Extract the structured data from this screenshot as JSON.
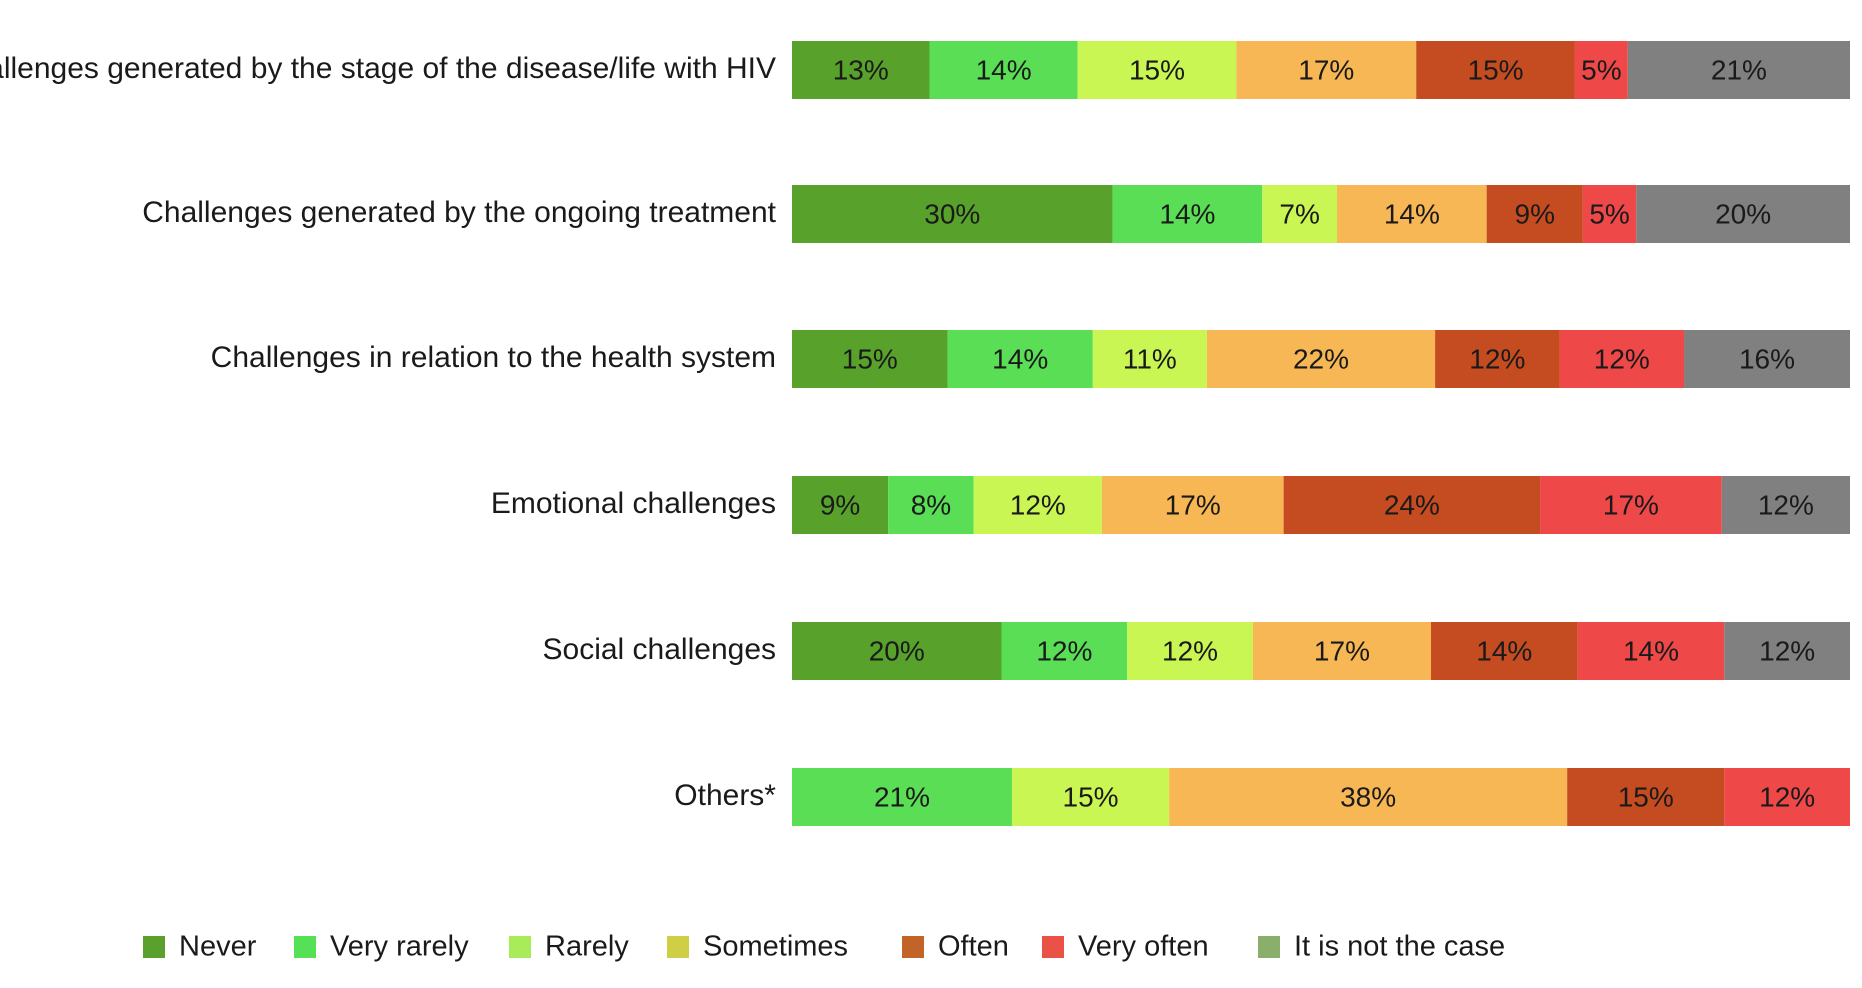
{
  "chart_data": {
    "type": "bar",
    "orientation": "horizontal",
    "stacked": true,
    "title": "",
    "xlabel": "",
    "ylabel": "",
    "xlim": [
      0,
      100
    ],
    "unit": "%",
    "categories": [
      "Challenges generated by the stage of the disease/life with HIV",
      "Challenges generated by the ongoing treatment",
      "Challenges in relation to the health system",
      "Emotional challenges",
      "Social challenges",
      "Others*"
    ],
    "segments": [
      [
        {
          "series": "Never",
          "value": 13,
          "color": "#58A22C",
          "label": "13%"
        },
        {
          "series": "Very rarely",
          "value": 14,
          "color": "#59DE55",
          "label": "14%"
        },
        {
          "series": "Rarely",
          "value": 15,
          "color": "#C9F653",
          "label": "15%"
        },
        {
          "series": "Sometimes",
          "value": 17,
          "color": "#F8B755",
          "label": "17%"
        },
        {
          "series": "Often",
          "value": 15,
          "color": "#C44C20",
          "label": "15%"
        },
        {
          "series": "Very often",
          "value": 5,
          "color": "#EE4848",
          "label": "5%"
        },
        {
          "series": "It is not the case",
          "value": 21,
          "color": "#808080",
          "label": "21%"
        }
      ],
      [
        {
          "series": "Never",
          "value": 30,
          "color": "#58A22C",
          "label": "30%"
        },
        {
          "series": "Very rarely",
          "value": 14,
          "color": "#59DE55",
          "label": "14%"
        },
        {
          "series": "Rarely",
          "value": 7,
          "color": "#C9F653",
          "label": "7%"
        },
        {
          "series": "Sometimes",
          "value": 14,
          "color": "#F8B755",
          "label": "14%"
        },
        {
          "series": "Often",
          "value": 9,
          "color": "#C44C20",
          "label": "9%"
        },
        {
          "series": "Very often",
          "value": 5,
          "color": "#EE4848",
          "label": "5%"
        },
        {
          "series": "It is not the case",
          "value": 20,
          "color": "#808080",
          "label": "20%"
        }
      ],
      [
        {
          "series": "Never",
          "value": 15,
          "color": "#58A22C",
          "label": "15%"
        },
        {
          "series": "Very rarely",
          "value": 14,
          "color": "#59DE55",
          "label": "14%"
        },
        {
          "series": "Rarely",
          "value": 11,
          "color": "#C9F653",
          "label": "11%"
        },
        {
          "series": "Sometimes",
          "value": 22,
          "color": "#F8B755",
          "label": "22%"
        },
        {
          "series": "Often",
          "value": 12,
          "color": "#C44C20",
          "label": "12%"
        },
        {
          "series": "Very often",
          "value": 12,
          "color": "#EE4848",
          "label": "12%"
        },
        {
          "series": "It is not the case",
          "value": 16,
          "color": "#808080",
          "label": "16%"
        }
      ],
      [
        {
          "series": "Never",
          "value": 9,
          "color": "#58A22C",
          "label": "9%"
        },
        {
          "series": "Very rarely",
          "value": 8,
          "color": "#59DE55",
          "label": "8%"
        },
        {
          "series": "Rarely",
          "value": 12,
          "color": "#C9F653",
          "label": "12%"
        },
        {
          "series": "Sometimes",
          "value": 17,
          "color": "#F8B755",
          "label": "17%"
        },
        {
          "series": "Often",
          "value": 24,
          "color": "#C44C20",
          "label": "24%"
        },
        {
          "series": "Very often",
          "value": 17,
          "color": "#EE4848",
          "label": "17%"
        },
        {
          "series": "It is not the case",
          "value": 12,
          "color": "#808080",
          "label": "12%"
        }
      ],
      [
        {
          "series": "Never",
          "value": 20,
          "color": "#58A22C",
          "label": "20%"
        },
        {
          "series": "Very rarely",
          "value": 12,
          "color": "#59DE55",
          "label": "12%"
        },
        {
          "series": "Rarely",
          "value": 12,
          "color": "#C9F653",
          "label": "12%"
        },
        {
          "series": "Sometimes",
          "value": 17,
          "color": "#F8B755",
          "label": "17%"
        },
        {
          "series": "Often",
          "value": 14,
          "color": "#C44C20",
          "label": "14%"
        },
        {
          "series": "Very often",
          "value": 14,
          "color": "#EE4848",
          "label": "14%"
        },
        {
          "series": "It is not the case",
          "value": 12,
          "color": "#808080",
          "label": "12%"
        }
      ],
      [
        {
          "series": "Very rarely",
          "value": 21,
          "color": "#59DE55",
          "label": "21%"
        },
        {
          "series": "Rarely",
          "value": 15,
          "color": "#C9F653",
          "label": "15%"
        },
        {
          "series": "Sometimes",
          "value": 38,
          "color": "#F8B755",
          "label": "38%"
        },
        {
          "series": "Often",
          "value": 15,
          "color": "#C44C20",
          "label": "15%"
        },
        {
          "series": "Very often",
          "value": 12,
          "color": "#EE4848",
          "label": "12%"
        }
      ]
    ],
    "legend": {
      "placement": "bottom",
      "items": [
        {
          "label": "Never",
          "color": "#5AA02C"
        },
        {
          "label": "Very rarely",
          "color": "#55E055"
        },
        {
          "label": "Rarely",
          "color": "#A8EC5A"
        },
        {
          "label": "Sometimes",
          "color": "#CFCF45"
        },
        {
          "label": "Often",
          "color": "#C26427"
        },
        {
          "label": "Very often",
          "color": "#EA5147"
        },
        {
          "label": "It is not the case",
          "color": "#8AAF6D"
        }
      ]
    }
  }
}
